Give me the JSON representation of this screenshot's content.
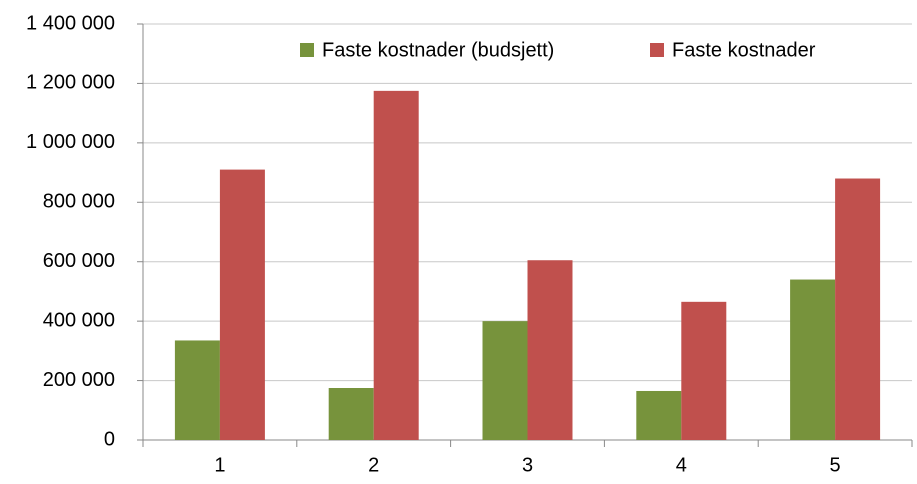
{
  "chart_data": {
    "type": "bar",
    "categories": [
      "1",
      "2",
      "3",
      "4",
      "5"
    ],
    "series": [
      {
        "name": "Faste kostnader (budsjett)",
        "color": "#77933c",
        "values": [
          335000,
          175000,
          400000,
          165000,
          540000
        ]
      },
      {
        "name": "Faste kostnader",
        "color": "#c0504d",
        "values": [
          910000,
          1175000,
          605000,
          465000,
          880000
        ]
      }
    ],
    "ylim": [
      0,
      1400000
    ],
    "yticks": [
      0,
      {
        "value": 200000,
        "label": "200 000"
      },
      {
        "value": 400000,
        "label": "400 000"
      },
      {
        "value": 600000,
        "label": "600 000"
      },
      {
        "value": 800000,
        "label": "800 000"
      },
      {
        "value": 1000000,
        "label": "1 000 000"
      },
      {
        "value": 1200000,
        "label": "1 200 000"
      },
      {
        "value": 1400000,
        "label": "1 400 000"
      }
    ],
    "grid": true,
    "legend": "top"
  }
}
